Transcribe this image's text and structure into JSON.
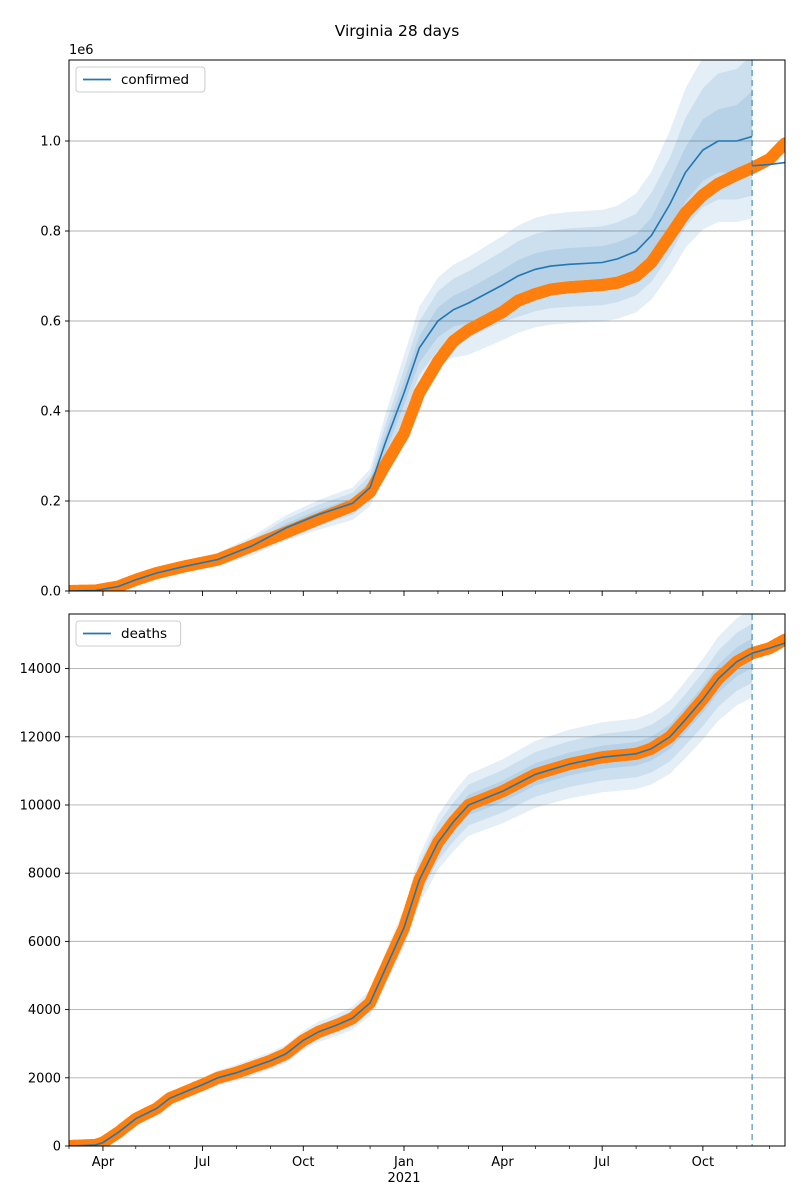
{
  "figure": {
    "title": "Virginia 28 days",
    "forecast_marker_date": "2021-11-15"
  },
  "chart_data": [
    {
      "type": "line",
      "panel": "top",
      "title": "Virginia 28 days",
      "offset_text": "1e6",
      "xlim": [
        "2020-03-01",
        "2021-12-15"
      ],
      "ylim": [
        0,
        1180000
      ],
      "y_ticks": [
        0,
        200000,
        400000,
        600000,
        800000,
        1000000
      ],
      "y_tick_labels": [
        "0.0",
        "0.2",
        "0.4",
        "0.6",
        "0.8",
        "1.0"
      ],
      "x_tick_labels": [],
      "grid": "y",
      "legend": {
        "placement": "top-left",
        "entries": [
          "confirmed"
        ]
      },
      "colors": {
        "model": "#1f77b4",
        "observed": "#ff7f0e",
        "band": "#1f77b4"
      },
      "observed": {
        "x": [
          "2020-03-01",
          "2020-03-25",
          "2020-04-15",
          "2020-05-01",
          "2020-05-20",
          "2020-06-15",
          "2020-07-15",
          "2020-08-15",
          "2020-09-15",
          "2020-10-15",
          "2020-11-15",
          "2020-12-01",
          "2020-12-15",
          "2021-01-01",
          "2021-01-15",
          "2021-02-01",
          "2021-02-15",
          "2021-03-01",
          "2021-04-01",
          "2021-04-15",
          "2021-05-01",
          "2021-05-15",
          "2021-06-01",
          "2021-07-01",
          "2021-07-15",
          "2021-08-01",
          "2021-08-15",
          "2021-09-01",
          "2021-09-15",
          "2021-10-01",
          "2021-10-15",
          "2021-11-01",
          "2021-11-15",
          "2021-12-01",
          "2021-12-15"
        ],
        "y": [
          0,
          1000,
          10000,
          25000,
          40000,
          55000,
          70000,
          100000,
          130000,
          160000,
          190000,
          220000,
          280000,
          350000,
          440000,
          510000,
          555000,
          580000,
          620000,
          645000,
          660000,
          670000,
          675000,
          680000,
          685000,
          700000,
          730000,
          790000,
          840000,
          880000,
          905000,
          925000,
          940000,
          960000,
          995000
        ]
      },
      "model": {
        "x": [
          "2020-03-01",
          "2020-03-25",
          "2020-04-15",
          "2020-05-01",
          "2020-05-20",
          "2020-06-15",
          "2020-07-15",
          "2020-08-15",
          "2020-09-15",
          "2020-10-15",
          "2020-11-15",
          "2020-12-01",
          "2020-12-15",
          "2021-01-01",
          "2021-01-15",
          "2021-02-01",
          "2021-02-15",
          "2021-03-01",
          "2021-04-01",
          "2021-04-15",
          "2021-05-01",
          "2021-05-15",
          "2021-06-01",
          "2021-07-01",
          "2021-07-15",
          "2021-08-01",
          "2021-08-15",
          "2021-09-01",
          "2021-09-15",
          "2021-10-01",
          "2021-10-15",
          "2021-11-01",
          "2021-11-15"
        ],
        "y": [
          0,
          1000,
          10000,
          25000,
          40000,
          55000,
          70000,
          100000,
          140000,
          170000,
          195000,
          230000,
          330000,
          440000,
          540000,
          600000,
          625000,
          640000,
          680000,
          700000,
          715000,
          722000,
          726000,
          730000,
          738000,
          755000,
          790000,
          860000,
          930000,
          980000,
          1000000,
          1000000,
          1010000
        ]
      },
      "after": {
        "x": [
          "2021-11-15",
          "2021-12-01",
          "2021-12-15"
        ],
        "y": [
          945000,
          948000,
          952000
        ]
      },
      "bands_rel": [
        {
          "lo": [
            1,
            1,
            0.94,
            0.92,
            0.91,
            0.91,
            0.91,
            0.92,
            0.92,
            0.92,
            0.92,
            0.93,
            0.93,
            0.94,
            0.94,
            0.94,
            0.94,
            0.93,
            0.93,
            0.93,
            0.93,
            0.93,
            0.93,
            0.93,
            0.93,
            0.93,
            0.93,
            0.93,
            0.93,
            0.93,
            0.93,
            0.93,
            0.93
          ],
          "hi": [
            1,
            1,
            1.05,
            1.07,
            1.08,
            1.08,
            1.08,
            1.07,
            1.07,
            1.06,
            1.06,
            1.06,
            1.06,
            1.06,
            1.05,
            1.05,
            1.05,
            1.05,
            1.05,
            1.05,
            1.05,
            1.05,
            1.05,
            1.05,
            1.05,
            1.05,
            1.05,
            1.06,
            1.06,
            1.07,
            1.07,
            1.08,
            1.1
          ]
        },
        {
          "lo": [
            1,
            1,
            0.88,
            0.86,
            0.85,
            0.85,
            0.85,
            0.85,
            0.86,
            0.86,
            0.87,
            0.88,
            0.88,
            0.88,
            0.89,
            0.89,
            0.88,
            0.88,
            0.88,
            0.87,
            0.87,
            0.87,
            0.87,
            0.87,
            0.87,
            0.87,
            0.87,
            0.87,
            0.87,
            0.87,
            0.87,
            0.87,
            0.87
          ],
          "hi": [
            1,
            1,
            1.12,
            1.14,
            1.15,
            1.15,
            1.15,
            1.15,
            1.14,
            1.13,
            1.12,
            1.12,
            1.12,
            1.12,
            1.11,
            1.11,
            1.11,
            1.11,
            1.11,
            1.11,
            1.11,
            1.11,
            1.11,
            1.11,
            1.11,
            1.11,
            1.12,
            1.12,
            1.13,
            1.14,
            1.15,
            1.16,
            1.18
          ]
        },
        {
          "lo": [
            1,
            1,
            0.82,
            0.8,
            0.79,
            0.79,
            0.79,
            0.79,
            0.8,
            0.8,
            0.81,
            0.82,
            0.82,
            0.83,
            0.84,
            0.84,
            0.83,
            0.82,
            0.82,
            0.82,
            0.82,
            0.82,
            0.82,
            0.82,
            0.82,
            0.82,
            0.82,
            0.82,
            0.82,
            0.82,
            0.82,
            0.82,
            0.82
          ],
          "hi": [
            1,
            1,
            1.18,
            1.2,
            1.21,
            1.21,
            1.21,
            1.21,
            1.2,
            1.19,
            1.18,
            1.18,
            1.19,
            1.19,
            1.17,
            1.16,
            1.16,
            1.16,
            1.16,
            1.16,
            1.16,
            1.16,
            1.16,
            1.16,
            1.16,
            1.17,
            1.18,
            1.19,
            1.2,
            1.21,
            1.22,
            1.24,
            1.26
          ]
        }
      ]
    },
    {
      "type": "line",
      "panel": "bottom",
      "xlim": [
        "2020-03-01",
        "2021-12-15"
      ],
      "ylim": [
        0,
        15600
      ],
      "y_ticks": [
        0,
        2000,
        4000,
        6000,
        8000,
        10000,
        12000,
        14000
      ],
      "y_tick_labels": [
        "0",
        "2000",
        "4000",
        "6000",
        "8000",
        "10000",
        "12000",
        "14000"
      ],
      "x_ticks": [
        "2020-04-01",
        "2020-07-01",
        "2020-10-01",
        "2021-01-01",
        "2021-04-01",
        "2021-07-01",
        "2021-10-01"
      ],
      "x_tick_labels": [
        "Apr",
        "Jul",
        "Oct",
        "Jan",
        "Apr",
        "Jul",
        "Oct"
      ],
      "x_year_label": "2021",
      "x_minor_ticks": [
        "2020-03-01",
        "2020-05-01",
        "2020-06-01",
        "2020-08-01",
        "2020-09-01",
        "2020-11-01",
        "2020-12-01",
        "2021-02-01",
        "2021-03-01",
        "2021-05-01",
        "2021-06-01",
        "2021-08-01",
        "2021-09-01",
        "2021-11-01",
        "2021-12-01"
      ],
      "grid": "y",
      "legend": {
        "placement": "top-left",
        "entries": [
          "deaths"
        ]
      },
      "colors": {
        "model": "#1f77b4",
        "observed": "#ff7f0e",
        "band": "#1f77b4"
      },
      "observed": {
        "x": [
          "2020-03-01",
          "2020-03-25",
          "2020-04-01",
          "2020-04-15",
          "2020-05-01",
          "2020-05-20",
          "2020-06-01",
          "2020-07-01",
          "2020-07-15",
          "2020-08-01",
          "2020-09-01",
          "2020-09-15",
          "2020-10-01",
          "2020-10-15",
          "2020-11-01",
          "2020-11-15",
          "2020-12-01",
          "2020-12-15",
          "2021-01-01",
          "2021-01-15",
          "2021-02-01",
          "2021-02-15",
          "2021-03-01",
          "2021-04-01",
          "2021-05-01",
          "2021-06-01",
          "2021-07-01",
          "2021-08-01",
          "2021-08-15",
          "2021-09-01",
          "2021-09-15",
          "2021-10-01",
          "2021-10-15",
          "2021-11-01",
          "2021-11-15",
          "2021-12-01",
          "2021-12-15"
        ],
        "y": [
          0,
          30,
          100,
          400,
          800,
          1100,
          1400,
          1800,
          2000,
          2150,
          2500,
          2700,
          3100,
          3350,
          3550,
          3750,
          4200,
          5200,
          6400,
          7800,
          8900,
          9500,
          10000,
          10400,
          10900,
          11200,
          11400,
          11500,
          11650,
          12000,
          12500,
          13100,
          13700,
          14200,
          14450,
          14600,
          14850
        ]
      },
      "model": {
        "x": [
          "2020-03-01",
          "2020-03-25",
          "2020-04-01",
          "2020-04-15",
          "2020-05-01",
          "2020-05-20",
          "2020-06-01",
          "2020-07-01",
          "2020-07-15",
          "2020-08-01",
          "2020-09-01",
          "2020-09-15",
          "2020-10-01",
          "2020-10-15",
          "2020-11-01",
          "2020-11-15",
          "2020-12-01",
          "2020-12-15",
          "2021-01-01",
          "2021-01-15",
          "2021-02-01",
          "2021-02-15",
          "2021-03-01",
          "2021-04-01",
          "2021-05-01",
          "2021-06-01",
          "2021-07-01",
          "2021-08-01",
          "2021-08-15",
          "2021-09-01",
          "2021-09-15",
          "2021-10-01",
          "2021-10-15",
          "2021-11-01",
          "2021-11-15"
        ],
        "y": [
          0,
          30,
          100,
          400,
          800,
          1100,
          1400,
          1800,
          2000,
          2150,
          2500,
          2700,
          3100,
          3350,
          3550,
          3750,
          4200,
          5200,
          6400,
          7800,
          8900,
          9500,
          10000,
          10400,
          10900,
          11200,
          11400,
          11500,
          11650,
          12000,
          12500,
          13100,
          13700,
          14200,
          14450
        ]
      },
      "after": {
        "x": [
          "2021-11-15",
          "2021-12-01",
          "2021-12-15"
        ],
        "y": [
          14450,
          14600,
          14750
        ]
      },
      "bands_rel": [
        {
          "lo": [
            1,
            1,
            0.98,
            0.97,
            0.96,
            0.96,
            0.96,
            0.96,
            0.96,
            0.96,
            0.96,
            0.96,
            0.97,
            0.97,
            0.97,
            0.97,
            0.97,
            0.97,
            0.97,
            0.97,
            0.97,
            0.97,
            0.97,
            0.97,
            0.97,
            0.97,
            0.97,
            0.97,
            0.97,
            0.97,
            0.97,
            0.97,
            0.97,
            0.97,
            0.97
          ],
          "hi": [
            1,
            1,
            1.02,
            1.03,
            1.04,
            1.04,
            1.04,
            1.04,
            1.04,
            1.04,
            1.04,
            1.04,
            1.03,
            1.03,
            1.03,
            1.03,
            1.03,
            1.03,
            1.03,
            1.03,
            1.03,
            1.03,
            1.03,
            1.03,
            1.03,
            1.03,
            1.03,
            1.03,
            1.03,
            1.03,
            1.03,
            1.03,
            1.03,
            1.03,
            1.03
          ]
        },
        {
          "lo": [
            1,
            1,
            0.95,
            0.93,
            0.92,
            0.92,
            0.92,
            0.92,
            0.92,
            0.92,
            0.93,
            0.93,
            0.94,
            0.94,
            0.94,
            0.94,
            0.94,
            0.94,
            0.94,
            0.94,
            0.94,
            0.94,
            0.94,
            0.94,
            0.94,
            0.94,
            0.94,
            0.94,
            0.94,
            0.94,
            0.94,
            0.94,
            0.94,
            0.94,
            0.94
          ],
          "hi": [
            1,
            1,
            1.05,
            1.07,
            1.08,
            1.08,
            1.08,
            1.08,
            1.08,
            1.08,
            1.07,
            1.07,
            1.06,
            1.06,
            1.06,
            1.06,
            1.06,
            1.06,
            1.06,
            1.06,
            1.06,
            1.06,
            1.06,
            1.06,
            1.06,
            1.06,
            1.06,
            1.06,
            1.06,
            1.06,
            1.06,
            1.06,
            1.06,
            1.06,
            1.06
          ]
        },
        {
          "lo": [
            1,
            1,
            0.92,
            0.9,
            0.89,
            0.89,
            0.89,
            0.89,
            0.89,
            0.89,
            0.9,
            0.9,
            0.91,
            0.91,
            0.91,
            0.91,
            0.91,
            0.91,
            0.91,
            0.91,
            0.91,
            0.91,
            0.91,
            0.91,
            0.91,
            0.91,
            0.91,
            0.91,
            0.91,
            0.91,
            0.91,
            0.91,
            0.91,
            0.91,
            0.91
          ],
          "hi": [
            1,
            1,
            1.08,
            1.1,
            1.11,
            1.11,
            1.11,
            1.11,
            1.11,
            1.11,
            1.1,
            1.1,
            1.09,
            1.09,
            1.09,
            1.09,
            1.09,
            1.09,
            1.09,
            1.09,
            1.09,
            1.09,
            1.09,
            1.09,
            1.09,
            1.09,
            1.09,
            1.09,
            1.09,
            1.09,
            1.09,
            1.09,
            1.09,
            1.09,
            1.09
          ]
        }
      ]
    }
  ]
}
